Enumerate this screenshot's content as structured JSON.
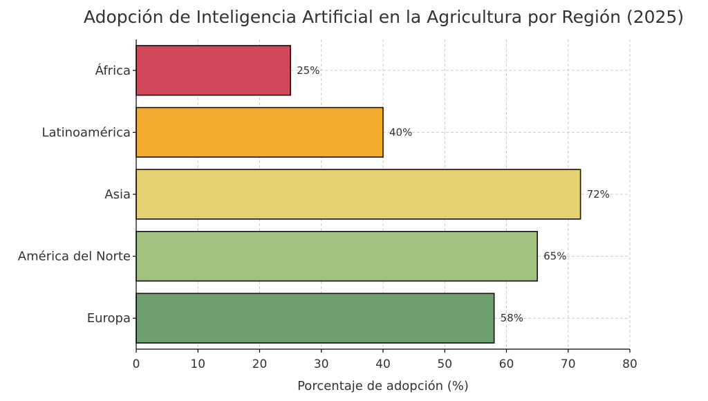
{
  "chart_data": {
    "type": "bar",
    "orientation": "horizontal",
    "title": "Adopción de Inteligencia Artificial en la Agricultura por Región (2025)",
    "xlabel": "Porcentaje de adopción (%)",
    "ylabel": "",
    "xlim": [
      0,
      80
    ],
    "xticks": [
      0,
      10,
      20,
      30,
      40,
      50,
      60,
      70,
      80
    ],
    "grid": true,
    "categories": [
      "África",
      "Latinoamérica",
      "Asia",
      "América del Norte",
      "Europa"
    ],
    "values": [
      25,
      40,
      72,
      65,
      58
    ],
    "value_labels": [
      "25%",
      "40%",
      "72%",
      "65%",
      "58%"
    ],
    "colors": [
      "#d1495b",
      "#f4ac30",
      "#e3d26f",
      "#a1c181",
      "#6f9e70"
    ]
  }
}
